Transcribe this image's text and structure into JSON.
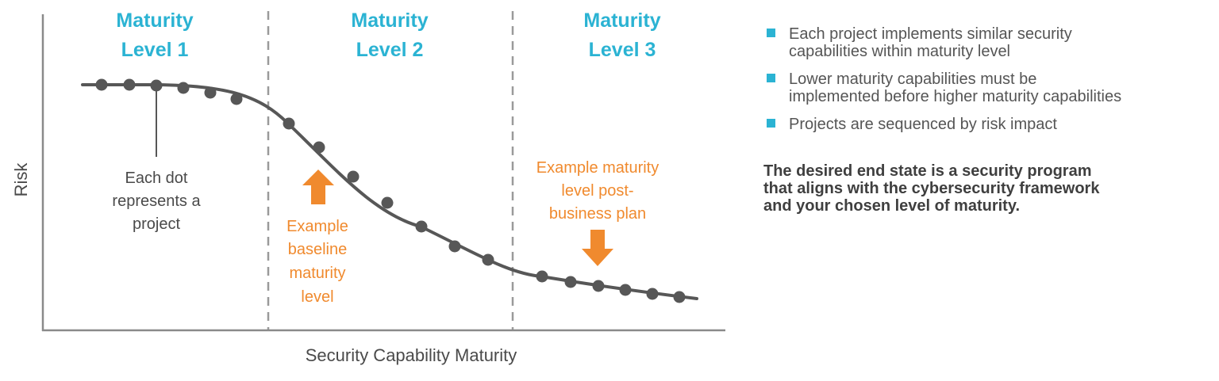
{
  "levels": [
    {
      "line1": "Maturity",
      "line2": "Level 1"
    },
    {
      "line1": "Maturity",
      "line2": "Level 2"
    },
    {
      "line1": "Maturity",
      "line2": "Level 3"
    }
  ],
  "axes": {
    "y_label": "Risk",
    "x_label": "Security Capability Maturity"
  },
  "annotations": {
    "dot_note": [
      "Each dot",
      "represents a",
      "project"
    ],
    "baseline_note": [
      "Example",
      "baseline",
      "maturity",
      "level"
    ],
    "post_plan_note": [
      "Example maturity",
      "level post-",
      "business plan"
    ]
  },
  "bullets": [
    {
      "line1": "Each project implements similar security",
      "line2": "capabilities within maturity level"
    },
    {
      "line1": "Lower maturity capabilities must be",
      "line2": "implemented before higher maturity capabilities"
    },
    {
      "line1": "Projects are sequenced by risk impact",
      "line2": ""
    }
  ],
  "end_state": {
    "line1": "The desired end state is a security program",
    "line2": "that aligns with the cybersecurity framework",
    "line3": "and your chosen level of maturity."
  },
  "colors": {
    "title": "#2bb3d3",
    "accent": "#f08a2e",
    "curve": "#575757",
    "dot": "#575757",
    "divider": "#9a9a9a",
    "bullet": "#2bb3d3"
  }
}
